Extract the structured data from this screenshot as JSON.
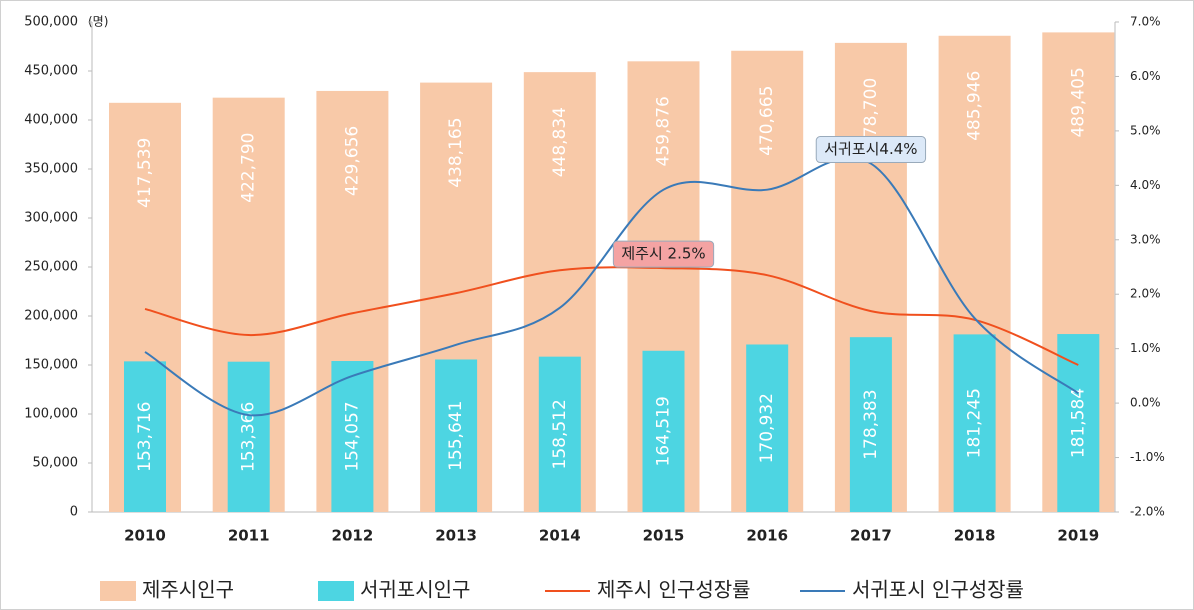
{
  "chart_data": {
    "type": "bar",
    "y_unit": "(명)",
    "categories": [
      "2010",
      "2011",
      "2012",
      "2013",
      "2014",
      "2015",
      "2016",
      "2017",
      "2018",
      "2019"
    ],
    "series": [
      {
        "name": "제주시인구",
        "type": "bar",
        "color": "#f8c9a8",
        "values": [
          417539,
          422790,
          429656,
          438165,
          448834,
          459876,
          470665,
          478700,
          485946,
          489405
        ],
        "value_labels": [
          "417,539",
          "422,790",
          "429,656",
          "438,165",
          "448,834",
          "459,876",
          "470,665",
          "478,700",
          "485,946",
          "489,405"
        ]
      },
      {
        "name": "서귀포시인구",
        "type": "bar",
        "color": "#4dd5e2",
        "values": [
          153716,
          153366,
          154057,
          155641,
          158512,
          164519,
          170932,
          178383,
          181245,
          181584
        ],
        "value_labels": [
          "153,716",
          "153,366",
          "154,057",
          "155,641",
          "158,512",
          "164,519",
          "170,932",
          "178,383",
          "181,245",
          "181,584"
        ]
      },
      {
        "name": "제주시 인구성장률",
        "type": "line",
        "axis": "y2",
        "color": "#f0501e",
        "values": [
          1.73,
          1.25,
          1.65,
          2.02,
          2.44,
          2.48,
          2.35,
          1.69,
          1.53,
          0.7
        ]
      },
      {
        "name": "서귀포시 인구성장률",
        "type": "line",
        "axis": "y2",
        "color": "#3a7ab8",
        "values": [
          0.94,
          -0.22,
          0.5,
          1.07,
          1.75,
          3.92,
          3.92,
          4.4,
          1.56,
          0.18
        ]
      }
    ],
    "annotations": [
      {
        "text": "서귀포시4.4%",
        "series": 3,
        "index": 7,
        "color": "#dce9f8"
      },
      {
        "text": "제주시 2.5%",
        "series": 2,
        "index": 5,
        "color": "#f4a3a3"
      }
    ],
    "ylim": [
      0,
      500000
    ],
    "yticks": [
      0,
      {
        "value": 50000,
        "label": "50,000"
      },
      {
        "value": 100000,
        "label": "100,000"
      },
      {
        "value": 150000,
        "label": "150,000"
      },
      {
        "value": 200000,
        "label": "200,000"
      },
      {
        "value": 250000,
        "label": "250,000"
      },
      {
        "value": 300000,
        "label": "300,000"
      },
      {
        "value": 350000,
        "label": "350,000"
      },
      {
        "value": 400000,
        "label": "400,000"
      },
      {
        "value": 450000,
        "label": "450,000"
      },
      {
        "value": 500000,
        "label": "500,000"
      }
    ],
    "y2lim": [
      -2,
      7
    ],
    "y2ticks": [
      {
        "value": -2,
        "label": "-2.0%"
      },
      {
        "value": -1,
        "label": "-1.0%"
      },
      {
        "value": 0,
        "label": "0.0%"
      },
      {
        "value": 1,
        "label": "1.0%"
      },
      {
        "value": 2,
        "label": "2.0%"
      },
      {
        "value": 3,
        "label": "3.0%"
      },
      {
        "value": 4,
        "label": "4.0%"
      },
      {
        "value": 5,
        "label": "5.0%"
      },
      {
        "value": 6,
        "label": "6.0%"
      },
      {
        "value": 7,
        "label": "7.0%"
      }
    ],
    "legend": "bottom"
  }
}
